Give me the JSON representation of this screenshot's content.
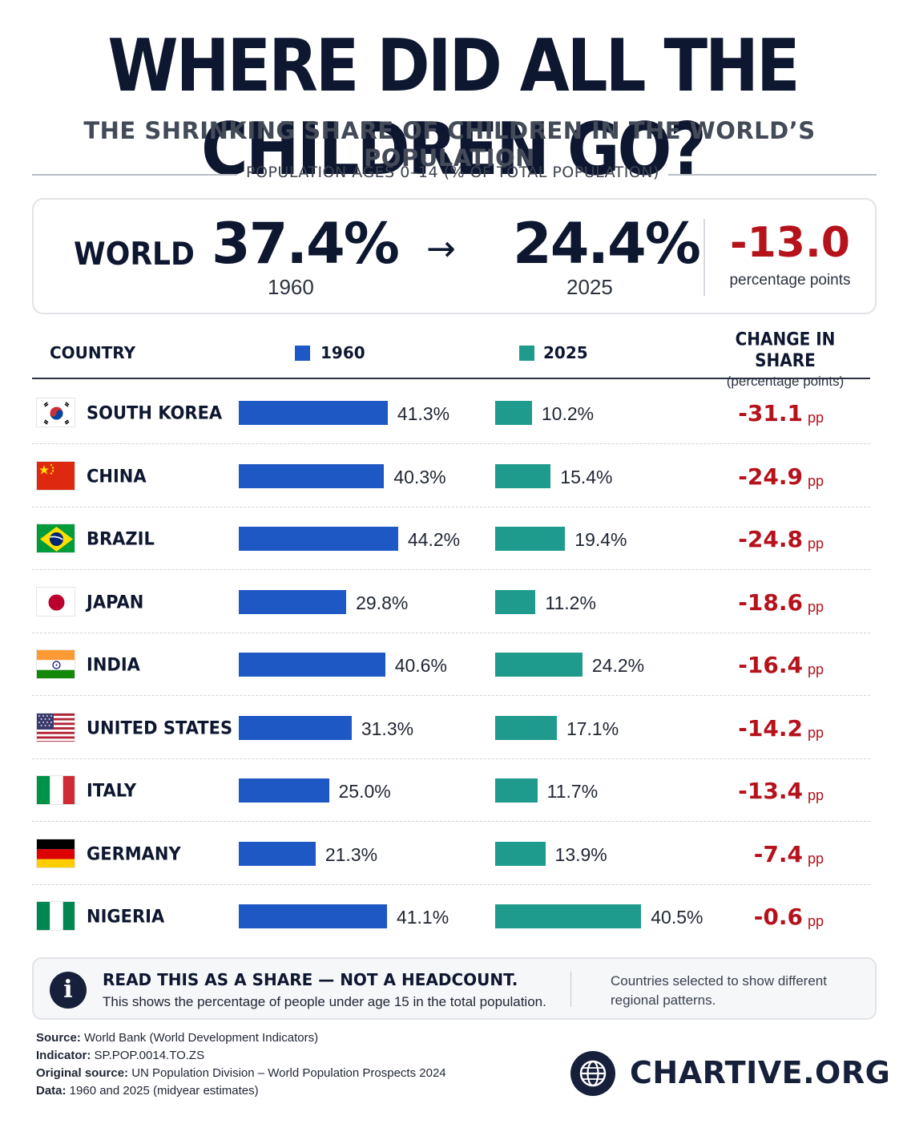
{
  "title": "WHERE DID ALL THE CHILDREN GO?",
  "subtitle": "THE SHRINKING SHARE OF CHILDREN IN THE WORLD’S POPULATION",
  "indicator_label": "POPULATION AGES 0–14 (% OF TOTAL POPULATION)",
  "world": {
    "label": "WORLD",
    "value_1960": "37.4%",
    "year_1960": "1960",
    "arrow": "→",
    "value_2025": "24.4%",
    "year_2025": "2025",
    "change": "-13.0",
    "change_unit": "percentage points"
  },
  "table_header": {
    "country": "COUNTRY",
    "year_a": "1960",
    "year_b": "2025",
    "change_title": "CHANGE IN SHARE",
    "change_sub": "(percentage points)"
  },
  "colors": {
    "bar_1960": "#1e58c4",
    "bar_2025": "#1e9b8c",
    "change": "#b5121b",
    "title": "#0e1730"
  },
  "chart_data": {
    "type": "bar",
    "orientation": "horizontal",
    "categories": [
      "SOUTH KOREA",
      "CHINA",
      "BRAZIL",
      "JAPAN",
      "INDIA",
      "UNITED STATES",
      "ITALY",
      "GERMANY",
      "NIGERIA"
    ],
    "flags": [
      "south-korea",
      "china",
      "brazil",
      "japan",
      "india",
      "united-states",
      "italy",
      "germany",
      "nigeria"
    ],
    "series": [
      {
        "name": "1960",
        "values": [
          41.3,
          40.3,
          44.2,
          29.8,
          40.6,
          31.3,
          25.0,
          21.3,
          41.1
        ]
      },
      {
        "name": "2025",
        "values": [
          10.2,
          15.4,
          19.4,
          11.2,
          24.2,
          17.1,
          11.7,
          13.9,
          40.5
        ]
      }
    ],
    "labels_1960": [
      "41.3%",
      "40.3%",
      "44.2%",
      "29.8%",
      "40.6%",
      "31.3%",
      "25.0%",
      "21.3%",
      "41.1%"
    ],
    "labels_2025": [
      "10.2%",
      "15.4%",
      "19.4%",
      "11.2%",
      "24.2%",
      "17.1%",
      "11.7%",
      "13.9%",
      "40.5%"
    ],
    "change": [
      "-31.1",
      "-24.9",
      "-24.8",
      "-18.6",
      "-16.4",
      "-14.2",
      "-13.4",
      "-7.4",
      "-0.6"
    ],
    "change_unit": "pp",
    "world": {
      "v1960": 37.4,
      "v2025": 24.4,
      "change": -13.0
    }
  },
  "note": {
    "icon": "info-icon",
    "icon_glyph": "i",
    "title": "READ THIS AS A SHARE — NOT A HEADCOUNT.",
    "text": "This shows the percentage of people under age 15 in the total population.",
    "side": "Countries selected to show different regional patterns."
  },
  "sources": [
    {
      "label": "Source:",
      "value": " World Bank (World Development Indicators)"
    },
    {
      "label": "Indicator:",
      "value": " SP.POP.0014.TO.ZS"
    },
    {
      "label": "Original source:",
      "value": " UN Population Division – World Population Prospects 2024"
    },
    {
      "label": "Data:",
      "value": " 1960 and 2025 (midyear estimates)"
    }
  ],
  "brand": {
    "name": "CHARTIVE.ORG",
    "icon": "globe-icon"
  }
}
